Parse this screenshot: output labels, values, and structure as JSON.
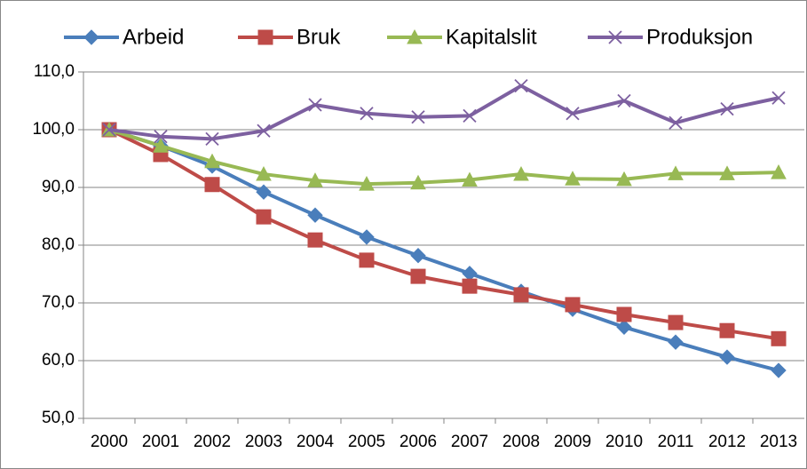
{
  "chart_data": {
    "type": "line",
    "categories": [
      "2000",
      "2001",
      "2002",
      "2003",
      "2004",
      "2005",
      "2006",
      "2007",
      "2008",
      "2009",
      "2010",
      "2011",
      "2012",
      "2013"
    ],
    "series": [
      {
        "name": "Arbeid",
        "color": "#4a7ebb",
        "marker": "diamond",
        "values": [
          100,
          97.2,
          93.7,
          89.2,
          85.2,
          81.4,
          78.2,
          75.1,
          72.0,
          68.9,
          65.8,
          63.2,
          60.6,
          58.3
        ]
      },
      {
        "name": "Bruk",
        "color": "#be4b48",
        "marker": "square",
        "values": [
          100,
          95.7,
          90.5,
          84.9,
          80.9,
          77.4,
          74.6,
          72.9,
          71.4,
          69.7,
          68.0,
          66.6,
          65.2,
          63.8
        ]
      },
      {
        "name": "Kapitalslit",
        "color": "#98b954",
        "marker": "triangle",
        "values": [
          100,
          97.2,
          94.5,
          92.3,
          91.2,
          90.6,
          90.8,
          91.3,
          92.3,
          91.5,
          91.4,
          92.4,
          92.4,
          92.6
        ]
      },
      {
        "name": "Produksjon",
        "color": "#7d60a0",
        "marker": "x",
        "values": [
          100,
          98.8,
          98.4,
          99.8,
          104.3,
          102.8,
          102.2,
          102.4,
          107.6,
          102.8,
          105.0,
          101.2,
          103.6,
          105.5
        ]
      }
    ],
    "ylim": [
      50,
      110
    ],
    "yticks": [
      {
        "value": 50,
        "label": "50,0"
      },
      {
        "value": 60,
        "label": "60,0"
      },
      {
        "value": 70,
        "label": "70,0"
      },
      {
        "value": 80,
        "label": "80,0"
      },
      {
        "value": 90,
        "label": "90,0"
      },
      {
        "value": 100,
        "label": "100,0"
      },
      {
        "value": 110,
        "label": "110,0"
      }
    ],
    "grid": true,
    "legend": "top"
  }
}
